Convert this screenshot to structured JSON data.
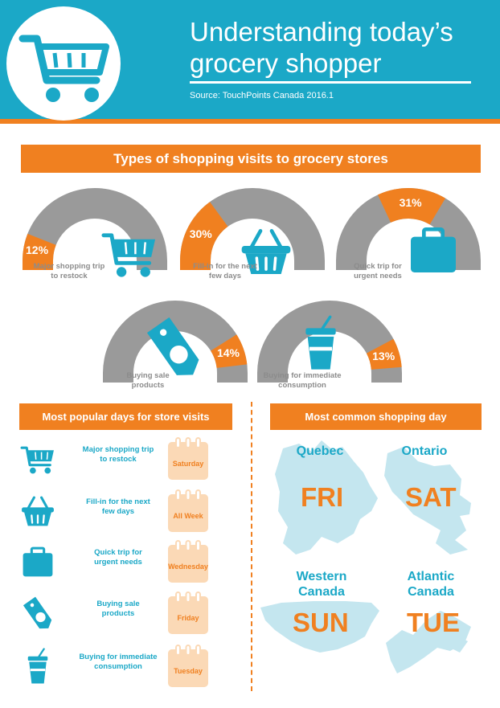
{
  "header": {
    "title_line1": "Understanding today’s",
    "title_line2": "grocery shopper",
    "source": "Source: TouchPoints Canada 2016.1",
    "logo_icon": "shopping-cart-icon"
  },
  "colors": {
    "teal": "#1ba8c7",
    "orange": "#f08020",
    "gray": "#9a9a9a",
    "peach": "#fbd9b6",
    "map": "#c4e6ef"
  },
  "sections": {
    "types_title": "Types of shopping visits to grocery stores",
    "days_title": "Most popular days for store visits",
    "common_title": "Most common shopping day"
  },
  "chart_data": {
    "type": "gauge",
    "title": "Types of shopping visits to grocery stores",
    "unit": "%",
    "categories": [
      "Major shopping trip to restock",
      "Fill-in for the next few days",
      "Quick trip for urgent needs",
      "Buying sale products",
      "Buying for immediate consumption"
    ],
    "values": [
      12,
      30,
      31,
      14,
      13
    ],
    "value_labels": [
      "12%",
      "30%",
      "31%",
      "14%",
      "13%"
    ],
    "icons": [
      "shopping-cart-icon",
      "basket-icon",
      "briefcase-icon",
      "price-tag-icon",
      "drink-cup-icon"
    ]
  },
  "gauge_labels": [
    {
      "line1": "Major shopping trip",
      "line2": "to restock"
    },
    {
      "line1": "Fill-in for the next",
      "line2": "few days"
    },
    {
      "line1": "Quick trip for",
      "line2": "urgent needs"
    },
    {
      "line1": "Buying sale",
      "line2": "products"
    },
    {
      "line1": "Buying for immediate",
      "line2": "consumption"
    }
  ],
  "popular_days": [
    {
      "line1": "Major shopping trip",
      "line2": "to restock",
      "day": "Saturday",
      "icon": "shopping-cart-icon"
    },
    {
      "line1": "Fill-in for the next",
      "line2": "few days",
      "day": "All Week",
      "icon": "basket-icon"
    },
    {
      "line1": "Quick trip for",
      "line2": "urgent needs",
      "day": "Wednesday",
      "icon": "briefcase-icon"
    },
    {
      "line1": "Buying sale",
      "line2": "products",
      "day": "Friday",
      "icon": "price-tag-icon"
    },
    {
      "line1": "Buying for immediate",
      "line2": "consumption",
      "day": "Tuesday",
      "icon": "drink-cup-icon"
    }
  ],
  "regions": [
    {
      "name_line1": "Quebec",
      "name_line2": "",
      "day": "FRI"
    },
    {
      "name_line1": "Ontario",
      "name_line2": "",
      "day": "SAT"
    },
    {
      "name_line1": "Western",
      "name_line2": "Canada",
      "day": "SUN"
    },
    {
      "name_line1": "Atlantic",
      "name_line2": "Canada",
      "day": "TUE"
    }
  ]
}
